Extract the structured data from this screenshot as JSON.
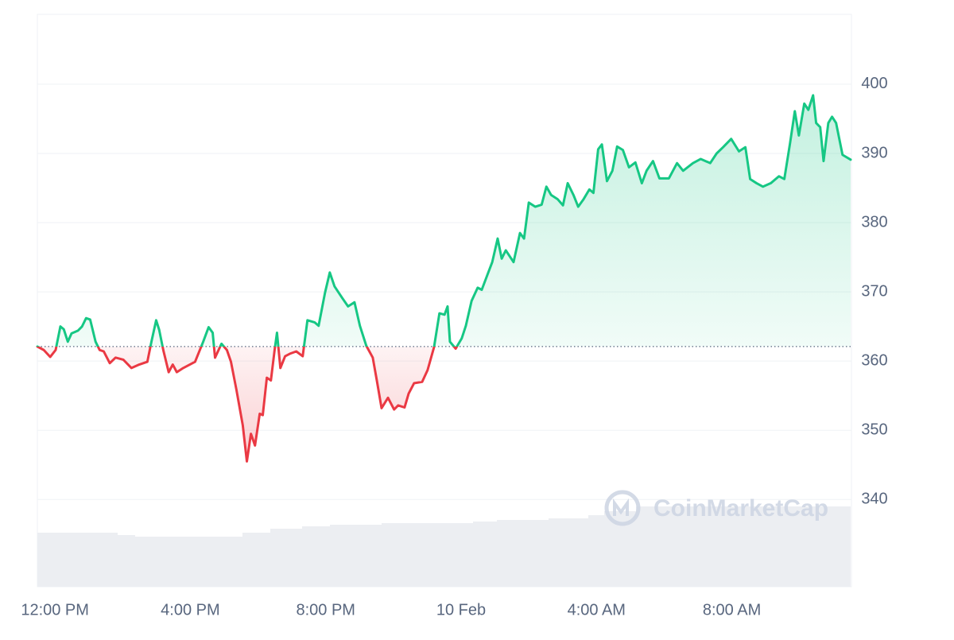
{
  "chart_data": {
    "type": "line",
    "watermark": "CoinMarketCap",
    "up_color": "#16c784",
    "down_color": "#ea3943",
    "grid": true,
    "baseline": 362.1,
    "x": [
      -0.52,
      -0.33,
      -0.14,
      0.02,
      0.16,
      0.26,
      0.38,
      0.49,
      0.68,
      0.8,
      0.92,
      1.04,
      1.2,
      1.32,
      1.44,
      1.62,
      1.79,
      2.02,
      2.26,
      2.49,
      2.73,
      2.85,
      2.99,
      3.08,
      3.2,
      3.36,
      3.48,
      3.6,
      3.79,
      4.14,
      4.38,
      4.54,
      4.66,
      4.73,
      4.92,
      5.08,
      5.2,
      5.36,
      5.55,
      5.67,
      5.79,
      5.91,
      6.05,
      6.14,
      6.26,
      6.38,
      6.49,
      6.56,
      6.66,
      6.8,
      6.96,
      7.13,
      7.32,
      7.46,
      7.67,
      7.79,
      7.98,
      8.12,
      8.26,
      8.49,
      8.66,
      8.85,
      9.01,
      9.2,
      9.39,
      9.51,
      9.65,
      9.84,
      10.02,
      10.14,
      10.33,
      10.45,
      10.61,
      10.85,
      11.01,
      11.2,
      11.36,
      11.51,
      11.6,
      11.67,
      11.84,
      12.02,
      12.14,
      12.31,
      12.49,
      12.61,
      12.78,
      12.92,
      13.08,
      13.2,
      13.32,
      13.55,
      13.74,
      13.86,
      14,
      14.19,
      14.38,
      14.52,
      14.66,
      14.85,
      15.01,
      15.15,
      15.32,
      15.46,
      15.62,
      15.79,
      15.91,
      16.05,
      16.16,
      16.31,
      16.47,
      16.61,
      16.78,
      16.96,
      17.15,
      17.34,
      17.48,
      17.67,
      17.86,
      18.14,
      18.38,
      18.56,
      18.85,
      19.08,
      19.36,
      19.55,
      19.74,
      19.98,
      20.21,
      20.4,
      20.54,
      20.73,
      20.92,
      21.15,
      21.39,
      21.55,
      21.72,
      21.86,
      21.98,
      22.14,
      22.26,
      22.4,
      22.49,
      22.61,
      22.71,
      22.85,
      22.96,
      23.08,
      23.27,
      23.51
    ],
    "values": [
      362.1,
      361.6,
      360.6,
      361.6,
      365,
      364.6,
      362.8,
      364,
      364.4,
      365,
      366.2,
      366,
      362.8,
      361.6,
      361.4,
      359.7,
      360.5,
      360.2,
      359,
      359.5,
      359.9,
      362.8,
      365.9,
      364.5,
      361.6,
      358.4,
      359.5,
      358.4,
      359,
      359.9,
      362.8,
      364.9,
      364.1,
      360.5,
      362.5,
      361.6,
      359.9,
      355.9,
      350.7,
      345.5,
      349.5,
      347.8,
      352.4,
      352.2,
      357.6,
      357.2,
      361.6,
      364.1,
      359,
      360.7,
      361.1,
      361.4,
      360.7,
      365.9,
      365.6,
      365.1,
      369.9,
      372.8,
      370.8,
      369.1,
      367.9,
      368.5,
      365.1,
      362.2,
      360.5,
      357.2,
      353.2,
      354.7,
      353,
      353.6,
      353.3,
      355.3,
      356.8,
      357,
      358.7,
      362,
      366.9,
      366.7,
      367.9,
      362.8,
      361.8,
      363.3,
      365.1,
      368.7,
      370.6,
      370.3,
      372.5,
      374.3,
      377.7,
      374.8,
      376,
      374.3,
      378.5,
      377.7,
      382.9,
      382.3,
      382.6,
      385.2,
      384,
      383.4,
      382.5,
      385.7,
      384,
      382.3,
      383.4,
      384.8,
      384.3,
      390.6,
      391.3,
      386,
      387.5,
      391,
      390.5,
      388,
      388.7,
      385.7,
      387.5,
      388.9,
      386.4,
      386.4,
      388.6,
      387.5,
      388.6,
      389.2,
      388.6,
      390,
      390.9,
      392.1,
      390.3,
      390.9,
      386.3,
      385.7,
      385.2,
      385.7,
      386.7,
      386.3,
      391.5,
      396.1,
      392.6,
      397.2,
      396.3,
      398.4,
      394.4,
      393.8,
      388.9,
      394.4,
      395.3,
      394.4,
      389.8,
      389.1
    ],
    "xlim": [
      -0.52,
      23.51
    ],
    "xticks": [
      {
        "value": 0,
        "label": "12:00 PM"
      },
      {
        "value": 4,
        "label": "4:00 PM"
      },
      {
        "value": 8,
        "label": "8:00 PM"
      },
      {
        "value": 12,
        "label": "10 Feb"
      },
      {
        "value": 16,
        "label": "4:00 AM"
      },
      {
        "value": 20,
        "label": "8:00 AM"
      }
    ],
    "ylim": [
      327.4,
      410.1
    ],
    "yticks": [
      340,
      350,
      360,
      370,
      380,
      390,
      400
    ]
  }
}
